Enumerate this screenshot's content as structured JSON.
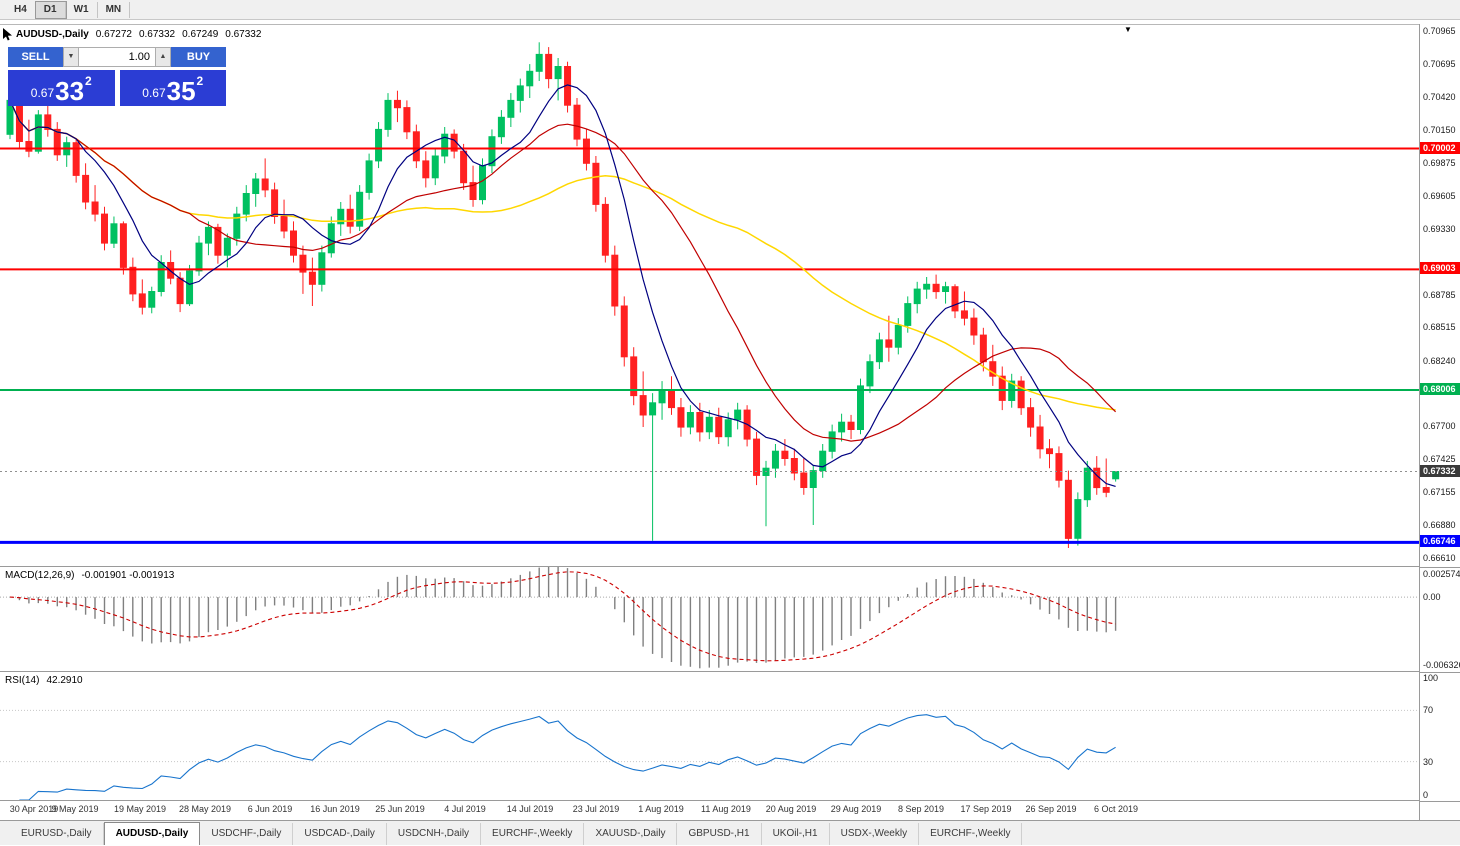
{
  "toolbar": {
    "timeframes": [
      {
        "label": "H4",
        "active": false
      },
      {
        "label": "D1",
        "active": true
      },
      {
        "label": "W1",
        "active": false
      },
      {
        "label": "MN",
        "active": false
      }
    ]
  },
  "window": {
    "title": "AUDUSD-,Daily",
    "ohlc": {
      "open": "0.67272",
      "high": "0.67332",
      "low": "0.67249",
      "close": "0.67332"
    }
  },
  "trade_panel": {
    "sell_label": "SELL",
    "buy_label": "BUY",
    "volume": "1.00",
    "spin_down": "▼",
    "spin_up": "▲",
    "sell_price": {
      "prefix": "0.67",
      "big": "33",
      "sup": "2"
    },
    "buy_price": {
      "prefix": "0.67",
      "big": "35",
      "sup": "2"
    }
  },
  "chart_data": {
    "type": "candlestick",
    "symbol": "AUDUSD-",
    "timeframe": "Daily",
    "view": {
      "price_max": 0.71023,
      "price_min": 0.66543
    },
    "axis_prices": [
      "0.70965",
      "0.70695",
      "0.70420",
      "0.70150",
      "0.69875",
      "0.69605",
      "0.69330",
      "0.68785",
      "0.68515",
      "0.68240",
      "0.67700",
      "0.67425",
      "0.67155",
      "0.66880",
      "0.66610"
    ],
    "hlines": [
      {
        "price": 0.70002,
        "color": "#ff0000",
        "width": 2,
        "label": "0.70002"
      },
      {
        "price": 0.69003,
        "color": "#ff0000",
        "width": 2,
        "label": "0.69003"
      },
      {
        "price": 0.68006,
        "color": "#00b050",
        "width": 2,
        "label": "0.68006"
      },
      {
        "price": 0.66746,
        "color": "#0000ff",
        "width": 3,
        "label": "0.66746"
      }
    ],
    "current_price": {
      "value": 0.67332,
      "label": "0.67332",
      "tag_color": "#3a3a3a"
    },
    "dates": [
      "30 Apr 2019",
      "9 May 2019",
      "19 May 2019",
      "28 May 2019",
      "6 Jun 2019",
      "16 Jun 2019",
      "25 Jun 2019",
      "4 Jul 2019",
      "14 Jul 2019",
      "23 Jul 2019",
      "1 Aug 2019",
      "11 Aug 2019",
      "20 Aug 2019",
      "29 Aug 2019",
      "8 Sep 2019",
      "17 Sep 2019",
      "26 Sep 2019",
      "6 Oct 2019"
    ],
    "colors": {
      "up": "#00c060",
      "down": "#ff2020",
      "ma_fast": "#000080",
      "ma_mid": "#c00000",
      "ma_slow": "#ffd700",
      "macd_hist": "#808080",
      "macd_signal": "#cc0000",
      "rsi": "#1874cd"
    },
    "ma_periods": {
      "fast": 8,
      "mid": 20,
      "slow": 45
    },
    "candles": [
      [
        0.7012,
        0.7046,
        0.7008,
        0.704
      ],
      [
        0.704,
        0.7044,
        0.7,
        0.7006
      ],
      [
        0.7006,
        0.7024,
        0.6993,
        0.6998
      ],
      [
        0.6998,
        0.7032,
        0.6996,
        0.7028
      ],
      [
        0.7028,
        0.7036,
        0.701,
        0.7016
      ],
      [
        0.7016,
        0.7022,
        0.699,
        0.6995
      ],
      [
        0.6995,
        0.701,
        0.6985,
        0.7005
      ],
      [
        0.7005,
        0.7008,
        0.6972,
        0.6978
      ],
      [
        0.6978,
        0.6988,
        0.695,
        0.6956
      ],
      [
        0.6956,
        0.697,
        0.694,
        0.6946
      ],
      [
        0.6946,
        0.6952,
        0.6916,
        0.6922
      ],
      [
        0.6922,
        0.6944,
        0.6918,
        0.6938
      ],
      [
        0.6938,
        0.694,
        0.6896,
        0.6902
      ],
      [
        0.6902,
        0.691,
        0.6874,
        0.688
      ],
      [
        0.688,
        0.6892,
        0.6863,
        0.6869
      ],
      [
        0.6869,
        0.6886,
        0.6864,
        0.6882
      ],
      [
        0.6882,
        0.6912,
        0.6878,
        0.6906
      ],
      [
        0.6906,
        0.6916,
        0.6888,
        0.6893
      ],
      [
        0.6893,
        0.6898,
        0.6865,
        0.6872
      ],
      [
        0.6872,
        0.6904,
        0.687,
        0.6899
      ],
      [
        0.6899,
        0.6928,
        0.6895,
        0.6922
      ],
      [
        0.6922,
        0.694,
        0.6912,
        0.6935
      ],
      [
        0.6935,
        0.6938,
        0.6905,
        0.6912
      ],
      [
        0.6912,
        0.693,
        0.6902,
        0.6926
      ],
      [
        0.6926,
        0.6952,
        0.692,
        0.6946
      ],
      [
        0.6946,
        0.697,
        0.694,
        0.6963
      ],
      [
        0.6963,
        0.698,
        0.6952,
        0.6975
      ],
      [
        0.6975,
        0.6992,
        0.696,
        0.6966
      ],
      [
        0.6966,
        0.6972,
        0.6938,
        0.6944
      ],
      [
        0.6944,
        0.6958,
        0.6926,
        0.6932
      ],
      [
        0.6932,
        0.694,
        0.6906,
        0.6912
      ],
      [
        0.6912,
        0.692,
        0.688,
        0.6898
      ],
      [
        0.6898,
        0.691,
        0.687,
        0.6888
      ],
      [
        0.6888,
        0.692,
        0.6882,
        0.6914
      ],
      [
        0.6914,
        0.6944,
        0.691,
        0.6938
      ],
      [
        0.6938,
        0.6956,
        0.6928,
        0.695
      ],
      [
        0.695,
        0.6962,
        0.693,
        0.6936
      ],
      [
        0.6936,
        0.697,
        0.6932,
        0.6964
      ],
      [
        0.6964,
        0.6996,
        0.6958,
        0.699
      ],
      [
        0.699,
        0.7022,
        0.6984,
        0.7016
      ],
      [
        0.7016,
        0.7046,
        0.701,
        0.704
      ],
      [
        0.704,
        0.7048,
        0.7022,
        0.7034
      ],
      [
        0.7034,
        0.704,
        0.7008,
        0.7014
      ],
      [
        0.7014,
        0.702,
        0.6984,
        0.699
      ],
      [
        0.699,
        0.6998,
        0.6968,
        0.6976
      ],
      [
        0.6976,
        0.7,
        0.697,
        0.6994
      ],
      [
        0.6994,
        0.7018,
        0.6988,
        0.7012
      ],
      [
        0.7012,
        0.7016,
        0.6992,
        0.6998
      ],
      [
        0.6998,
        0.7004,
        0.6966,
        0.6972
      ],
      [
        0.6972,
        0.6986,
        0.6952,
        0.6958
      ],
      [
        0.6958,
        0.6992,
        0.6954,
        0.6986
      ],
      [
        0.6986,
        0.7016,
        0.698,
        0.701
      ],
      [
        0.701,
        0.7032,
        0.7004,
        0.7026
      ],
      [
        0.7026,
        0.7046,
        0.7018,
        0.704
      ],
      [
        0.704,
        0.7058,
        0.703,
        0.7052
      ],
      [
        0.7052,
        0.707,
        0.7042,
        0.7064
      ],
      [
        0.7064,
        0.7088,
        0.7056,
        0.7078
      ],
      [
        0.7078,
        0.7084,
        0.705,
        0.7058
      ],
      [
        0.7058,
        0.7075,
        0.704,
        0.7068
      ],
      [
        0.7068,
        0.7072,
        0.703,
        0.7036
      ],
      [
        0.7036,
        0.7042,
        0.7002,
        0.7008
      ],
      [
        0.7008,
        0.7016,
        0.6982,
        0.6988
      ],
      [
        0.6988,
        0.6994,
        0.6948,
        0.6954
      ],
      [
        0.6954,
        0.696,
        0.6906,
        0.6912
      ],
      [
        0.6912,
        0.692,
        0.6862,
        0.687
      ],
      [
        0.687,
        0.6878,
        0.682,
        0.6828
      ],
      [
        0.6828,
        0.6836,
        0.6788,
        0.6796
      ],
      [
        0.6796,
        0.6816,
        0.677,
        0.678
      ],
      [
        0.678,
        0.6798,
        0.6676,
        0.679
      ],
      [
        0.679,
        0.6808,
        0.6776,
        0.68
      ],
      [
        0.68,
        0.6812,
        0.678,
        0.6786
      ],
      [
        0.6786,
        0.6794,
        0.6762,
        0.677
      ],
      [
        0.677,
        0.6788,
        0.6764,
        0.6782
      ],
      [
        0.6782,
        0.679,
        0.6758,
        0.6766
      ],
      [
        0.6766,
        0.6784,
        0.676,
        0.6778
      ],
      [
        0.6778,
        0.6786,
        0.6756,
        0.6762
      ],
      [
        0.6762,
        0.6782,
        0.6754,
        0.6776
      ],
      [
        0.6776,
        0.679,
        0.6768,
        0.6784
      ],
      [
        0.6784,
        0.6788,
        0.6754,
        0.676
      ],
      [
        0.676,
        0.6766,
        0.6722,
        0.673
      ],
      [
        0.673,
        0.6742,
        0.6688,
        0.6736
      ],
      [
        0.6736,
        0.6756,
        0.6728,
        0.675
      ],
      [
        0.675,
        0.676,
        0.6738,
        0.6744
      ],
      [
        0.6744,
        0.6752,
        0.6726,
        0.6732
      ],
      [
        0.6732,
        0.6744,
        0.6714,
        0.672
      ],
      [
        0.672,
        0.6738,
        0.6689,
        0.6734
      ],
      [
        0.6734,
        0.6756,
        0.6728,
        0.675
      ],
      [
        0.675,
        0.6772,
        0.6744,
        0.6766
      ],
      [
        0.6766,
        0.6781,
        0.6758,
        0.6774
      ],
      [
        0.6774,
        0.678,
        0.676,
        0.6768
      ],
      [
        0.6768,
        0.681,
        0.6764,
        0.6804
      ],
      [
        0.6804,
        0.683,
        0.6798,
        0.6824
      ],
      [
        0.6824,
        0.6848,
        0.6818,
        0.6842
      ],
      [
        0.6842,
        0.6862,
        0.6824,
        0.6836
      ],
      [
        0.6836,
        0.686,
        0.683,
        0.6854
      ],
      [
        0.6854,
        0.6878,
        0.6848,
        0.6872
      ],
      [
        0.6872,
        0.689,
        0.6864,
        0.6884
      ],
      [
        0.6884,
        0.6894,
        0.6876,
        0.6888
      ],
      [
        0.6888,
        0.6896,
        0.6876,
        0.6882
      ],
      [
        0.6882,
        0.689,
        0.6872,
        0.6886
      ],
      [
        0.6886,
        0.6888,
        0.686,
        0.6866
      ],
      [
        0.6866,
        0.6882,
        0.6854,
        0.686
      ],
      [
        0.686,
        0.6868,
        0.6838,
        0.6846
      ],
      [
        0.6846,
        0.6852,
        0.6816,
        0.6824
      ],
      [
        0.6824,
        0.6838,
        0.6804,
        0.6812
      ],
      [
        0.6812,
        0.682,
        0.6784,
        0.6792
      ],
      [
        0.6792,
        0.6814,
        0.6786,
        0.6808
      ],
      [
        0.6808,
        0.6812,
        0.678,
        0.6786
      ],
      [
        0.6786,
        0.6794,
        0.6762,
        0.677
      ],
      [
        0.677,
        0.678,
        0.6744,
        0.6752
      ],
      [
        0.6752,
        0.676,
        0.6736,
        0.6748
      ],
      [
        0.6748,
        0.6754,
        0.672,
        0.6726
      ],
      [
        0.6726,
        0.6734,
        0.667,
        0.6678
      ],
      [
        0.6678,
        0.6716,
        0.6672,
        0.671
      ],
      [
        0.671,
        0.6742,
        0.6704,
        0.6736
      ],
      [
        0.6736,
        0.6746,
        0.6714,
        0.672
      ],
      [
        0.672,
        0.6744,
        0.6712,
        0.6716
      ],
      [
        0.67272,
        0.67332,
        0.67249,
        0.67332
      ]
    ],
    "macd": {
      "label": "MACD(12,26,9)",
      "value_text": "-0.001901 -0.001913",
      "fast": 12,
      "slow": 26,
      "signal": 9,
      "range_max": 0.002574,
      "range_min": -0.006326,
      "axis": [
        "0.002574",
        "0.00",
        "-0.006326"
      ]
    },
    "rsi": {
      "label": "RSI(14)",
      "value": "42.2910",
      "period": 14,
      "levels": [
        70,
        30
      ],
      "axis": [
        "100",
        "70",
        "30",
        "0"
      ]
    }
  },
  "tabs": [
    {
      "label": "EURUSD-,Daily",
      "active": false
    },
    {
      "label": "AUDUSD-,Daily",
      "active": true
    },
    {
      "label": "USDCHF-,Daily",
      "active": false
    },
    {
      "label": "USDCAD-,Daily",
      "active": false
    },
    {
      "label": "USDCNH-,Daily",
      "active": false
    },
    {
      "label": "EURCHF-,Weekly",
      "active": false
    },
    {
      "label": "XAUUSD-,Daily",
      "active": false
    },
    {
      "label": "GBPUSD-,H1",
      "active": false
    },
    {
      "label": "UKOil-,H1",
      "active": false
    },
    {
      "label": "USDX-,Weekly",
      "active": false
    },
    {
      "label": "EURCHF-,Weekly",
      "active": false
    }
  ]
}
